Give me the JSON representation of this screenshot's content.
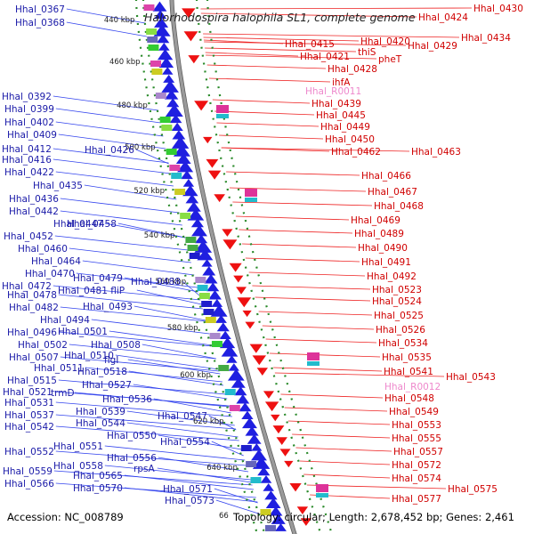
{
  "title": "Halorhodospira halophila SL1, complete genome",
  "footer": {
    "accession": "Accession: NC_008789",
    "topology": "Topology: circular; Length: 2,678,452 bp; Genes: 2,461",
    "partial_tick": "66"
  },
  "kbp_ticks": [
    "440 kbp",
    "460 kbp",
    "480 kbp",
    "500 kbp",
    "520 kbp",
    "540 kbp",
    "560 kbp",
    "580 kbp",
    "600 kbp",
    "620 kbp",
    "640 kbp"
  ],
  "left_labels": [
    "Hhal_0367",
    "Hhal_0368",
    "Hhal_0392",
    "Hhal_0399",
    "Hhal_0402",
    "Hhal_0409",
    "Hhal_0412",
    "Hhal_0416",
    "Hhal_0422",
    "Hhal_0426",
    "Hhal_0435",
    "Hhal_0436",
    "Hhal_0442",
    "Hhal_0447",
    "Hhal_0458",
    "Hhal_0452",
    "Hhal_0460",
    "Hhal_0464",
    "Hhal_0470",
    "Hhal_0479",
    "Hhal_0472",
    "Hhal_0481 fliP",
    "Hhal_0488",
    "Hhal_0478",
    "Hhal_0482",
    "Hhal_0493",
    "Hhal_0494",
    "Hhal_0501",
    "Hhal_0496",
    "Hhal_0502",
    "Hhal_0508",
    "Hhal_0507",
    "Hhal_0510",
    "flgI",
    "Hhal_0511",
    "Hhal_0518",
    "Hhal_0515",
    "Hhal_0527",
    "Hhal_0521",
    "trmD",
    "Hhal_0531",
    "Hhal_0536",
    "Hhal_0539",
    "Hhal_0537",
    "Hhal_0547",
    "Hhal_0544",
    "Hhal_0542",
    "Hhal_0550",
    "Hhal_0554",
    "Hhal_0551",
    "Hhal_0552",
    "Hhal_0556",
    "Hhal_0558",
    "rpsA",
    "Hhal_0559",
    "Hhal_0565",
    "Hhal_0566",
    "Hhal_0570",
    "Hhal_0571",
    "Hhal_0573"
  ],
  "right_labels": [
    "Hhal_0430",
    "Hhal_0424",
    "Hhal_0434",
    "Hhal_0420",
    "Hhal_0415",
    "Hhal_0429",
    "thiS",
    "Hhal_0421",
    "pheT",
    "Hhal_0428",
    "ihfA",
    "Hhal_0439",
    "Hhal_0445",
    "Hhal_0449",
    "Hhal_0450",
    "Hhal_0462",
    "Hhal_0463",
    "Hhal_0466",
    "Hhal_0467",
    "Hhal_0468",
    "Hhal_0469",
    "Hhal_0489",
    "Hhal_0490",
    "Hhal_0491",
    "Hhal_0492",
    "Hhal_0523",
    "Hhal_0524",
    "Hhal_0525",
    "Hhal_0526",
    "Hhal_0534",
    "Hhal_0535",
    "Hhal_0541",
    "Hhal_0543",
    "Hhal_0548",
    "Hhal_0549",
    "Hhal_0553",
    "Hhal_0555",
    "Hhal_0557",
    "Hhal_0572",
    "Hhal_0574",
    "Hhal_0575",
    "Hhal_0577"
  ],
  "rna_labels": [
    "Hhal_R0011",
    "Hhal_R0012"
  ],
  "colors": {
    "left_label": "#1a1aa8",
    "right_label": "#d00000",
    "rna_label": "#ee88cc",
    "backbone": "#9a9a9a",
    "reverse_feature": "#1f1fe0",
    "forward_feature": "#ee1111",
    "tick_dots": "#2a8a2a"
  }
}
